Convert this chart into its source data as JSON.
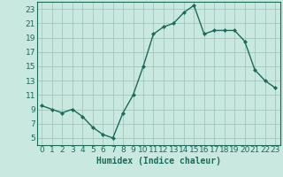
{
  "x": [
    0,
    1,
    2,
    3,
    4,
    5,
    6,
    7,
    8,
    9,
    10,
    11,
    12,
    13,
    14,
    15,
    16,
    17,
    18,
    19,
    20,
    21,
    22,
    23
  ],
  "y": [
    9.5,
    9.0,
    8.5,
    9.0,
    8.0,
    6.5,
    5.5,
    5.0,
    8.5,
    11.0,
    15.0,
    19.5,
    20.5,
    21.0,
    22.5,
    23.5,
    19.5,
    20.0,
    20.0,
    20.0,
    18.5,
    14.5,
    13.0,
    12.0
  ],
  "line_color": "#1a6b5a",
  "marker": "D",
  "marker_size": 2.0,
  "bg_color": "#c8e8e0",
  "grid_color": "#9dbfb8",
  "xlabel": "Humidex (Indice chaleur)",
  "xlabel_fontsize": 7,
  "xlim": [
    -0.5,
    23.5
  ],
  "ylim": [
    4,
    24
  ],
  "yticks": [
    5,
    7,
    9,
    11,
    13,
    15,
    17,
    19,
    21,
    23
  ],
  "xticks": [
    0,
    1,
    2,
    3,
    4,
    5,
    6,
    7,
    8,
    9,
    10,
    11,
    12,
    13,
    14,
    15,
    16,
    17,
    18,
    19,
    20,
    21,
    22,
    23
  ],
  "tick_fontsize": 6.5,
  "line_width": 1.0
}
